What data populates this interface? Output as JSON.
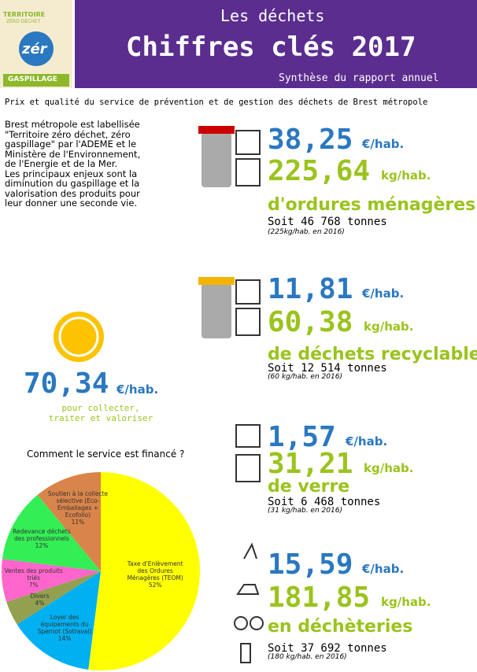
{
  "header": {
    "logo_top": "TERRITOIRE",
    "logo_sub": "ZÉRO DÉCHET",
    "logo_mid": "zér",
    "logo_bottom": "GASPILLAGE",
    "kicker": "Les déchets",
    "title": "Chiffres clés 2017",
    "subtitle": "Synthèse du rapport annuel"
  },
  "subheading": "Prix et qualité du service de prévention et de gestion des déchets de Brest métropole",
  "intro": [
    "Brest métropole est labellisée",
    "\"Territoire zéro déchet, zéro",
    "gaspillage\" par l'ADEME et le",
    "Ministère de l'Environnement,",
    "de l'Energie et de la Mer.",
    "Les principaux enjeux sont la",
    "diminution du gaspillage et la",
    "valorisation des produits pour",
    "leur donner une seconde vie."
  ],
  "total": {
    "value": "70,34",
    "unit": "€/hab.",
    "caption": [
      "pour collecter,",
      "traiter et valoriser"
    ]
  },
  "sections": [
    {
      "price": "38,25",
      "price_unit": "€/hab.",
      "weight": "225,64",
      "weight_unit": "kg/hab.",
      "label": "d'ordures ménagères",
      "tonnes": "Soit 46 768 tonnes",
      "note": "(225kg/hab. en 2016)"
    },
    {
      "price": "11,81",
      "price_unit": "€/hab.",
      "weight": "60,38",
      "weight_unit": "kg/hab.",
      "label": "de déchets recyclables",
      "tonnes": "Soit 12 514 tonnes",
      "note": "(60 kg/hab. en 2016)"
    },
    {
      "price": "1,57",
      "price_unit": "€/hab.",
      "weight": "31,21",
      "weight_unit": "kg/hab.",
      "label": "de verre",
      "tonnes": "Soit 6 468 tonnes",
      "note": "(31 kg/hab. en 2016)"
    },
    {
      "price": "15,59",
      "price_unit": "€/hab.",
      "weight": "181,85",
      "weight_unit": "kg/hab.",
      "label": "en déchèteries",
      "tonnes": "Soit 37 692 tonnes",
      "note": "(180 kg/hab. en 2016)"
    }
  ],
  "chart_data": {
    "type": "pie",
    "title": "Comment le service est financé ?",
    "categories": [
      "Taxe d'Enlèvement des Ordures Ménagères (TEOM)",
      "Loyer des équipements du Spernot (Sotraval)",
      "Divers",
      "Ventes des produits triés",
      "Redevance déchets des professionnels",
      "Soutien à la collecte sélective (Eco-Emballages + Ecofolio)"
    ],
    "values": [
      52,
      14,
      4,
      7,
      12,
      11
    ],
    "value_labels": [
      "52%",
      "14%",
      "4%",
      "7%",
      "12%",
      "11%"
    ],
    "colors": [
      "#ffff00",
      "#00b0f0",
      "#92a050",
      "#ff66cc",
      "#33ee55",
      "#d9844a"
    ]
  }
}
